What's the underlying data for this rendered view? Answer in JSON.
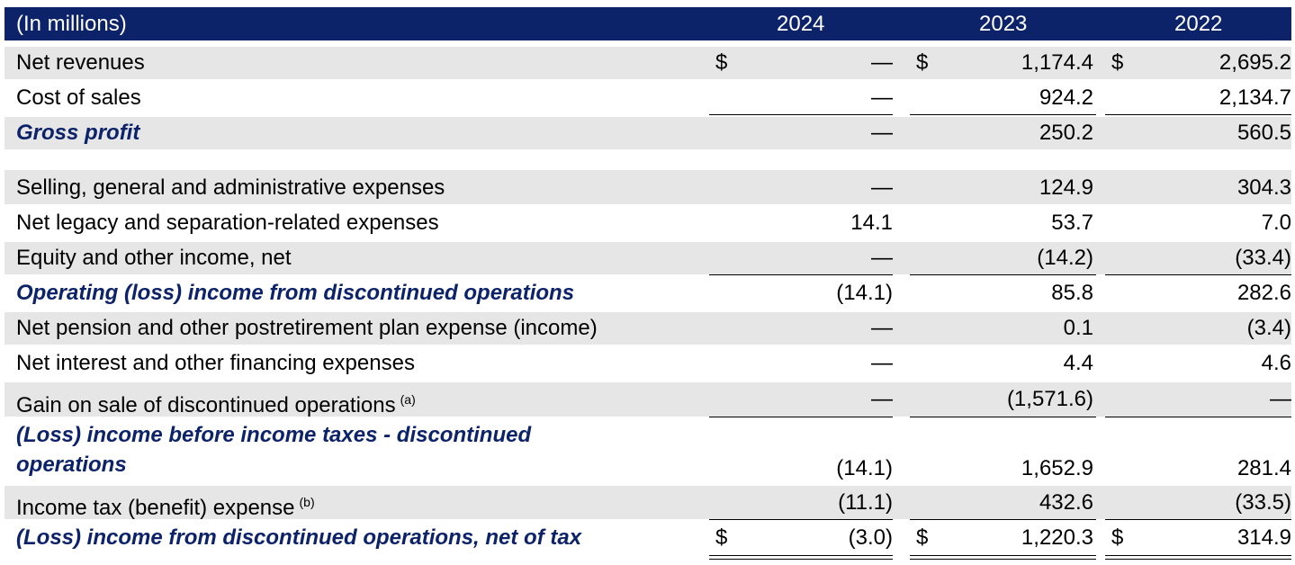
{
  "header": {
    "label": "(In millions)",
    "years": [
      "2024",
      "2023",
      "2022"
    ]
  },
  "rows": [
    {
      "label": "Net revenues",
      "v2024": "—",
      "v2023": "1,174.4",
      "v2022": "2,695.2",
      "dollar_2024": "$",
      "dollar_2023": "$",
      "dollar_2022": "$"
    },
    {
      "label": "Cost of sales",
      "v2024": "—",
      "v2023": "924.2",
      "v2022": "2,134.7"
    },
    {
      "label": "Gross profit",
      "v2024": "—",
      "v2023": "250.2",
      "v2022": "560.5"
    },
    {
      "label": "Selling, general and administrative expenses",
      "v2024": "—",
      "v2023": "124.9",
      "v2022": "304.3"
    },
    {
      "label": "Net legacy and separation-related expenses",
      "v2024": "14.1",
      "v2023": "53.7",
      "v2022": "7.0"
    },
    {
      "label": "Equity and other income, net",
      "v2024": "—",
      "v2023": "(14.2)",
      "v2022": "(33.4)"
    },
    {
      "label": "Operating (loss) income from discontinued operations",
      "v2024": "(14.1)",
      "v2023": "85.8",
      "v2022": "282.6"
    },
    {
      "label": "Net pension and other postretirement plan expense (income)",
      "v2024": "—",
      "v2023": "0.1",
      "v2022": "(3.4)"
    },
    {
      "label": "Net interest and other financing expenses",
      "v2024": "—",
      "v2023": "4.4",
      "v2022": "4.6"
    },
    {
      "label": "Gain on sale of discontinued operations",
      "sup": "(a)",
      "v2024": "—",
      "v2023": "(1,571.6)",
      "v2022": "—"
    },
    {
      "label_line1": "(Loss) income before income taxes - discontinued",
      "label_line2": "operations",
      "v2024": "(14.1)",
      "v2023": "1,652.9",
      "v2022": "281.4"
    },
    {
      "label": "Income tax (benefit) expense",
      "sup": "(b)",
      "v2024": "(11.1)",
      "v2023": "432.6",
      "v2022": "(33.5)"
    },
    {
      "label": "(Loss) income from discontinued operations, net of tax",
      "v2024": "(3.0)",
      "v2023": "1,220.3",
      "v2022": "314.9",
      "dollar_2024": "$",
      "dollar_2023": "$",
      "dollar_2022": "$"
    }
  ],
  "colors": {
    "header_bg": "#0c2269",
    "header_text": "#ffffff",
    "subtotal_text": "#0c2269",
    "row_shade": "#e6e6e6"
  }
}
